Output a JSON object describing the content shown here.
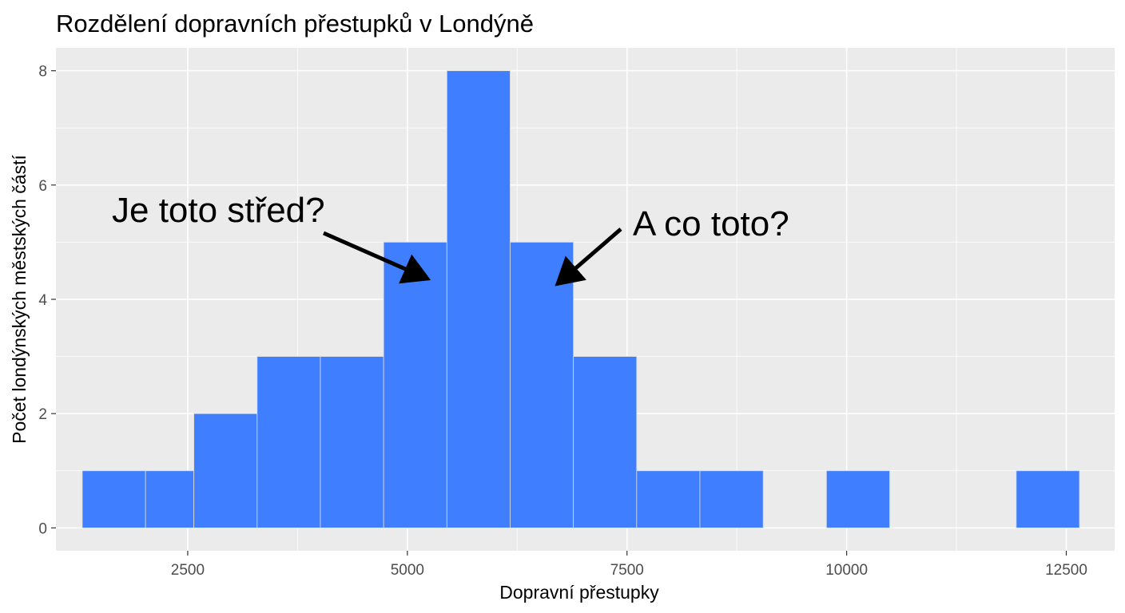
{
  "chart_data": {
    "type": "bar",
    "title": "Rozdělení dopravních přestupků v Londýně",
    "xlabel": "Dopravní přestupky",
    "ylabel": "Počet londýnských městských částí",
    "xlim": [
      1000,
      13050
    ],
    "ylim": [
      -0.4,
      8.4
    ],
    "x_ticks": [
      2500,
      5000,
      7500,
      10000,
      12500
    ],
    "y_ticks": [
      0,
      2,
      4,
      6,
      8
    ],
    "grid": true,
    "bar_color": "#3f7fff",
    "panel_color": "#ebebeb",
    "bins": [
      {
        "x0": 1300,
        "x1": 2020,
        "count": 1
      },
      {
        "x0": 2020,
        "x1": 2570,
        "count": 1
      },
      {
        "x0": 2570,
        "x1": 3290,
        "count": 2
      },
      {
        "x0": 3290,
        "x1": 4010,
        "count": 3
      },
      {
        "x0": 4010,
        "x1": 4730,
        "count": 3
      },
      {
        "x0": 4730,
        "x1": 5450,
        "count": 5
      },
      {
        "x0": 5450,
        "x1": 6170,
        "count": 8
      },
      {
        "x0": 6170,
        "x1": 6890,
        "count": 5
      },
      {
        "x0": 6890,
        "x1": 7610,
        "count": 3
      },
      {
        "x0": 7610,
        "x1": 8330,
        "count": 1
      },
      {
        "x0": 8330,
        "x1": 9050,
        "count": 1
      },
      {
        "x0": 9770,
        "x1": 10490,
        "count": 1
      },
      {
        "x0": 11930,
        "x1": 12650,
        "count": 1
      }
    ],
    "annotations": [
      {
        "text": "Je toto střed?"
      },
      {
        "text": "A co toto?"
      }
    ]
  }
}
